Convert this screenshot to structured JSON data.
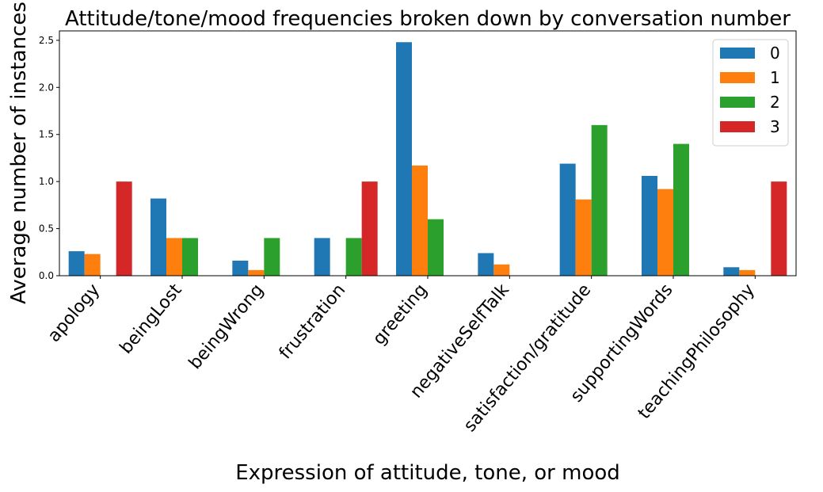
{
  "chart_data": {
    "type": "bar",
    "title": "Attitude/tone/mood frequencies broken down by conversation number",
    "xlabel": "Expression of attitude, tone, or mood",
    "ylabel": "Average number of instances",
    "categories": [
      "apology",
      "beingLost",
      "beingWrong",
      "frustration",
      "greeting",
      "negativeSelfTalk",
      "satisfaction/gratitude",
      "supportingWords",
      "teachingPhilosophy"
    ],
    "series": [
      {
        "name": "0",
        "color": "#1f77b4",
        "values": [
          0.26,
          0.82,
          0.16,
          0.4,
          2.48,
          0.24,
          1.19,
          1.06,
          0.09
        ]
      },
      {
        "name": "1",
        "color": "#ff7f0e",
        "values": [
          0.23,
          0.4,
          0.06,
          0,
          1.17,
          0.12,
          0.81,
          0.92,
          0.06
        ]
      },
      {
        "name": "2",
        "color": "#2ca02c",
        "values": [
          0,
          0.4,
          0.4,
          0.4,
          0.6,
          0,
          1.6,
          1.4,
          0
        ]
      },
      {
        "name": "3",
        "color": "#d62728",
        "values": [
          1.0,
          0,
          0,
          1.0,
          0,
          0,
          0,
          0,
          1.0
        ]
      }
    ],
    "ylim": [
      0,
      2.6
    ],
    "yticks": [
      "0.0",
      "0.5",
      "1.0",
      "1.5",
      "2.0",
      "2.5"
    ],
    "legend": "upper right",
    "grid": false
  }
}
